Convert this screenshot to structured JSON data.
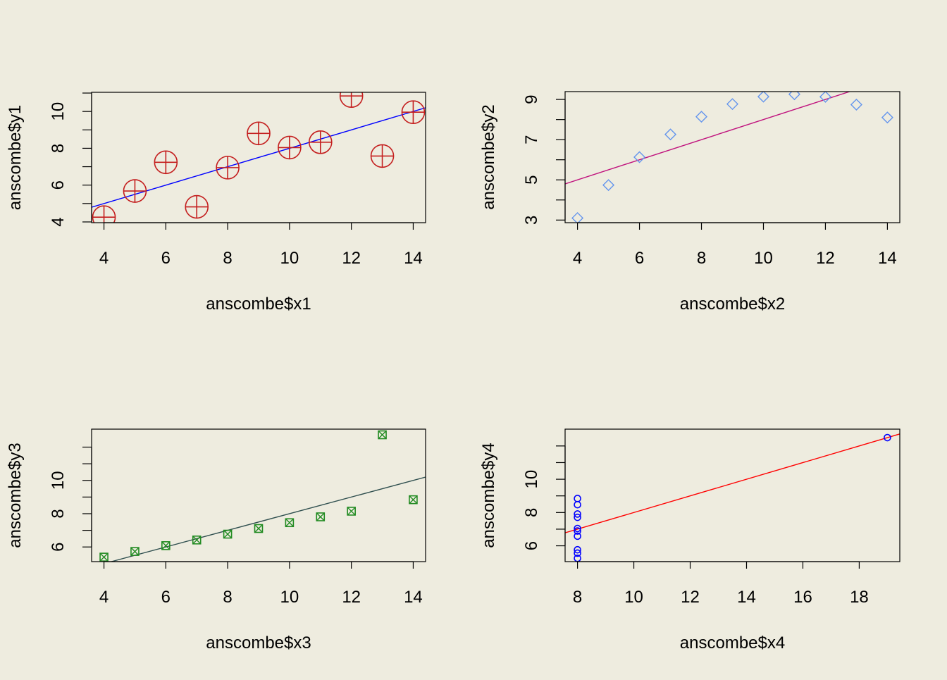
{
  "colors": {
    "background": "#eeecdf",
    "axis": "#000000"
  },
  "chart_data": [
    {
      "type": "scatter",
      "xlabel": "anscombe$x1",
      "ylabel": "anscombe$y1",
      "xlim": [
        3.6,
        14.4
      ],
      "ylim": [
        3.96,
        11.04
      ],
      "x_ticks": [
        4,
        6,
        8,
        10,
        12,
        14
      ],
      "y_ticks": [
        4,
        6,
        8,
        10
      ],
      "y_minor_ticks": [
        5,
        7,
        9,
        11
      ],
      "marker": "circle-plus",
      "marker_color": "#c41e1e",
      "points": [
        [
          4,
          4.26
        ],
        [
          5,
          5.68
        ],
        [
          6,
          7.24
        ],
        [
          7,
          4.82
        ],
        [
          8,
          6.95
        ],
        [
          9,
          8.81
        ],
        [
          10,
          8.04
        ],
        [
          11,
          8.33
        ],
        [
          12,
          10.84
        ],
        [
          13,
          7.58
        ],
        [
          14,
          9.96
        ]
      ],
      "fit_line": {
        "intercept": 3.0,
        "slope": 0.5,
        "color": "#0000ff"
      },
      "grid": false
    },
    {
      "type": "scatter",
      "xlabel": "anscombe$x2",
      "ylabel": "anscombe$y2",
      "xlim": [
        3.6,
        14.4
      ],
      "ylim": [
        2.87,
        9.39
      ],
      "x_ticks": [
        4,
        6,
        8,
        10,
        12,
        14
      ],
      "y_ticks": [
        3,
        5,
        7,
        9
      ],
      "y_minor_ticks": [
        4,
        6,
        8
      ],
      "marker": "diamond",
      "marker_color": "#6495ed",
      "points": [
        [
          4,
          3.1
        ],
        [
          5,
          4.74
        ],
        [
          6,
          6.13
        ],
        [
          7,
          7.26
        ],
        [
          8,
          8.14
        ],
        [
          9,
          8.77
        ],
        [
          10,
          9.14
        ],
        [
          11,
          9.26
        ],
        [
          12,
          9.13
        ],
        [
          13,
          8.74
        ],
        [
          14,
          8.1
        ]
      ],
      "fit_line": {
        "intercept": 3.0,
        "slope": 0.5,
        "color": "#c0137e"
      },
      "grid": false
    },
    {
      "type": "scatter",
      "xlabel": "anscombe$x3",
      "ylabel": "anscombe$y3",
      "xlim": [
        3.6,
        14.4
      ],
      "ylim": [
        5.12,
        13.08
      ],
      "x_ticks": [
        4,
        6,
        8,
        10,
        12,
        14
      ],
      "y_ticks": [
        6,
        8,
        10
      ],
      "y_minor_ticks": [
        7,
        9,
        11,
        12
      ],
      "marker": "square-x",
      "marker_color": "#228b22",
      "points": [
        [
          4,
          5.39
        ],
        [
          5,
          5.73
        ],
        [
          6,
          6.08
        ],
        [
          7,
          6.42
        ],
        [
          8,
          6.77
        ],
        [
          9,
          7.11
        ],
        [
          10,
          7.46
        ],
        [
          11,
          7.81
        ],
        [
          12,
          8.15
        ],
        [
          13,
          12.74
        ],
        [
          14,
          8.84
        ]
      ],
      "fit_line": {
        "intercept": 3.0,
        "slope": 0.5,
        "color": "#2f4f4f"
      },
      "grid": false
    },
    {
      "type": "scatter",
      "xlabel": "anscombe$x4",
      "ylabel": "anscombe$y4",
      "xlim": [
        7.56,
        19.44
      ],
      "ylim": [
        5.05,
        13.01
      ],
      "x_ticks": [
        8,
        10,
        12,
        14,
        16,
        18
      ],
      "y_ticks": [
        6,
        8,
        10
      ],
      "y_minor_ticks": [
        7,
        9,
        11,
        12
      ],
      "marker": "circle",
      "marker_color": "#0000ff",
      "points": [
        [
          8,
          6.58
        ],
        [
          8,
          5.76
        ],
        [
          8,
          7.71
        ],
        [
          8,
          8.84
        ],
        [
          8,
          8.47
        ],
        [
          8,
          7.04
        ],
        [
          8,
          5.25
        ],
        [
          19,
          12.5
        ],
        [
          8,
          5.56
        ],
        [
          8,
          7.91
        ],
        [
          8,
          6.89
        ]
      ],
      "fit_line": {
        "intercept": 3.0,
        "slope": 0.5,
        "color": "#ff0000"
      },
      "grid": false
    }
  ]
}
